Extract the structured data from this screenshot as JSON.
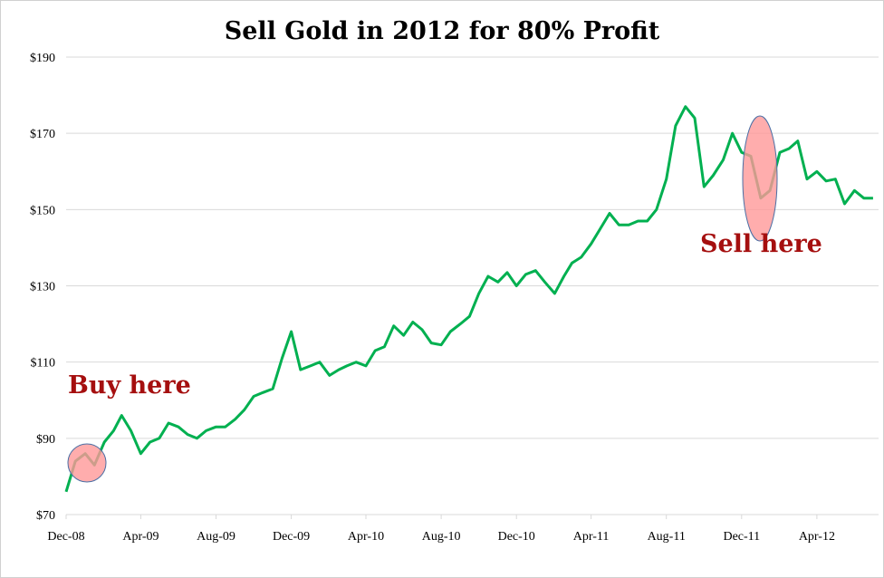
{
  "chart_data": {
    "type": "line",
    "title": "Sell Gold in 2012 for 80% Profit",
    "xlabel": "",
    "ylabel": "",
    "ylim": [
      70,
      190
    ],
    "yticks": [
      "$70",
      "$90",
      "$110",
      "$130",
      "$150",
      "$170",
      "$190"
    ],
    "ytick_values": [
      70,
      90,
      110,
      130,
      150,
      170,
      190
    ],
    "xticks": [
      "Dec-08",
      "Apr-09",
      "Aug-09",
      "Dec-09",
      "Apr-10",
      "Aug-10",
      "Dec-10",
      "Apr-11",
      "Aug-11",
      "Dec-11",
      "Apr-12"
    ],
    "xtick_dates": [
      "2008-12-01",
      "2009-04-01",
      "2009-08-01",
      "2009-12-01",
      "2010-04-01",
      "2010-08-01",
      "2010-12-01",
      "2011-04-01",
      "2011-08-01",
      "2011-12-01",
      "2012-04-01"
    ],
    "xlim": [
      "2008-12-01",
      "2012-07-10"
    ],
    "grid": "horizontal",
    "line_color": "#00b050",
    "series": [
      {
        "x": [
          "2008-12-01",
          "2008-12-16",
          "2009-01-01",
          "2009-01-16",
          "2009-02-01",
          "2009-02-16",
          "2009-03-01",
          "2009-03-16",
          "2009-04-01",
          "2009-04-16",
          "2009-05-01",
          "2009-05-16",
          "2009-06-01",
          "2009-06-16",
          "2009-07-01",
          "2009-07-16",
          "2009-08-01",
          "2009-08-16",
          "2009-09-01",
          "2009-09-16",
          "2009-10-01",
          "2009-10-16",
          "2009-11-01",
          "2009-11-16",
          "2009-12-01",
          "2009-12-16",
          "2010-01-01",
          "2010-01-16",
          "2010-02-01",
          "2010-02-16",
          "2010-03-01",
          "2010-03-16",
          "2010-04-01",
          "2010-04-16",
          "2010-05-01",
          "2010-05-16",
          "2010-06-01",
          "2010-06-16",
          "2010-07-01",
          "2010-07-16",
          "2010-08-01",
          "2010-08-16",
          "2010-09-01",
          "2010-09-16",
          "2010-10-01",
          "2010-10-16",
          "2010-11-01",
          "2010-11-16",
          "2010-12-01",
          "2010-12-16",
          "2011-01-01",
          "2011-01-16",
          "2011-02-01",
          "2011-02-16",
          "2011-03-01",
          "2011-03-16",
          "2011-04-01",
          "2011-04-16",
          "2011-05-01",
          "2011-05-16",
          "2011-06-01",
          "2011-06-16",
          "2011-07-01",
          "2011-07-16",
          "2011-08-01",
          "2011-08-16",
          "2011-09-01",
          "2011-09-16",
          "2011-10-01",
          "2011-10-16",
          "2011-11-01",
          "2011-11-16",
          "2011-12-01",
          "2011-12-16",
          "2012-01-01",
          "2012-01-16",
          "2012-02-01",
          "2012-02-16",
          "2012-03-01",
          "2012-03-16",
          "2012-04-01",
          "2012-04-16",
          "2012-05-01",
          "2012-05-16",
          "2012-06-01",
          "2012-06-16",
          "2012-07-01"
        ],
        "values": [
          76,
          84,
          86,
          83,
          89,
          92,
          96,
          92,
          86,
          89,
          90,
          94,
          93,
          91,
          90,
          92,
          93,
          93,
          95,
          97.5,
          101,
          102,
          103,
          111,
          118,
          108,
          109,
          110,
          106.5,
          108,
          109,
          110,
          109,
          113,
          114,
          119.5,
          117,
          120.5,
          118.5,
          115,
          114.5,
          118,
          120,
          122,
          128,
          132.5,
          131,
          133.5,
          130,
          133,
          134,
          131,
          128,
          132.5,
          136,
          137.5,
          141,
          145,
          149,
          146,
          146,
          147,
          147,
          150,
          158,
          172,
          177,
          174,
          156,
          159,
          163,
          170,
          165,
          164,
          153,
          155,
          165,
          166,
          168,
          158,
          160,
          157.5,
          158,
          151.5,
          155,
          153,
          153
        ]
      }
    ],
    "annotations": [
      {
        "text": "Buy here",
        "highlight_color": "#ff9999"
      },
      {
        "text": "Sell here",
        "highlight_color": "#ff9999"
      }
    ]
  }
}
